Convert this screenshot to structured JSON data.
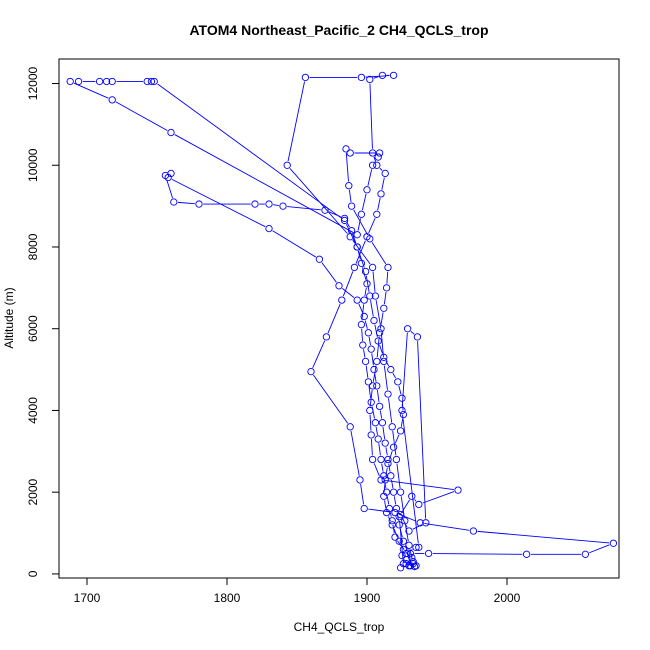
{
  "chart_data": {
    "type": "line",
    "title": "ATOM4 Northeast_Pacific_2 CH4_QCLS_trop",
    "xlabel": "CH4_QCLS_trop",
    "ylabel": "Altitude (m)",
    "xlim": [
      1680,
      2080
    ],
    "ylim": [
      -100,
      12600
    ],
    "xticks": [
      1700,
      1800,
      1900,
      2000
    ],
    "yticks": [
      0,
      2000,
      4000,
      6000,
      8000,
      10000,
      12000
    ],
    "grid": false,
    "color": "#0000ff",
    "marker": "open-circle",
    "series": [
      {
        "values": [
          [
            1924,
            150
          ],
          [
            1930,
            200
          ],
          [
            1934,
            180
          ],
          [
            1928,
            350
          ],
          [
            1932,
            400
          ],
          [
            1926,
            600
          ],
          [
            1920,
            900
          ],
          [
            1918,
            1300
          ],
          [
            1916,
            1600
          ],
          [
            1914,
            2000
          ],
          [
            1912,
            2400
          ],
          [
            1910,
            2800
          ],
          [
            1908,
            3300
          ],
          [
            1906,
            3700
          ],
          [
            1903,
            4200
          ],
          [
            1901,
            4700
          ],
          [
            1899,
            5200
          ],
          [
            1897,
            5600
          ],
          [
            1896,
            6100
          ],
          [
            1898,
            6700
          ],
          [
            1900,
            7100
          ],
          [
            1896,
            7600
          ],
          [
            1893,
            8000
          ],
          [
            1889,
            8400
          ],
          [
            1884,
            8700
          ],
          [
            1870,
            8900
          ],
          [
            1840,
            9000
          ],
          [
            1830,
            9050
          ],
          [
            1820,
            9050
          ],
          [
            1780,
            9050
          ],
          [
            1762,
            9100
          ],
          [
            1756,
            9750
          ],
          [
            1760,
            9800
          ],
          [
            1758,
            9700
          ],
          [
            1830,
            8450
          ],
          [
            1866,
            7700
          ],
          [
            1880,
            7050
          ],
          [
            1893,
            6700
          ],
          [
            1898,
            6300
          ],
          [
            1901,
            5900
          ],
          [
            1903,
            5500
          ],
          [
            1905,
            5000
          ],
          [
            1907,
            4600
          ],
          [
            1909,
            4100
          ],
          [
            1911,
            3700
          ],
          [
            1913,
            3200
          ],
          [
            1915,
            2800
          ],
          [
            1917,
            2400
          ],
          [
            1919,
            2000
          ],
          [
            1921,
            1600
          ],
          [
            1923,
            1200
          ],
          [
            1926,
            800
          ],
          [
            1931,
            500
          ],
          [
            1944,
            500
          ],
          [
            2014,
            480
          ],
          [
            2056,
            480
          ],
          [
            2076,
            750
          ],
          [
            1976,
            1050
          ],
          [
            1938,
            1250
          ],
          [
            1920,
            1500
          ],
          [
            1898,
            1600
          ],
          [
            1895,
            2300
          ],
          [
            1888,
            3600
          ],
          [
            1860,
            4950
          ],
          [
            1871,
            5800
          ],
          [
            1882,
            6700
          ],
          [
            1891,
            7500
          ],
          [
            1900,
            8250
          ],
          [
            1907,
            8800
          ],
          [
            1910,
            9300
          ],
          [
            1913,
            9800
          ],
          [
            1907,
            10000
          ],
          [
            1904,
            10300
          ],
          [
            1902,
            12100
          ],
          [
            1911,
            12200
          ],
          [
            1919,
            12200
          ],
          [
            1896,
            12150
          ],
          [
            1856,
            12150
          ],
          [
            1843,
            10000
          ],
          [
            1888,
            8250
          ],
          [
            1904,
            7500
          ],
          [
            1906,
            6800
          ],
          [
            1910,
            6000
          ],
          [
            1912,
            5200
          ],
          [
            1915,
            4400
          ],
          [
            1918,
            3600
          ],
          [
            1921,
            2800
          ],
          [
            1924,
            2000
          ],
          [
            1927,
            1300
          ],
          [
            1930,
            700
          ],
          [
            1933,
            250
          ],
          [
            1935,
            200
          ],
          [
            1926,
            250
          ],
          [
            1923,
            1400
          ],
          [
            1932,
            1900
          ],
          [
            1937,
            1700
          ],
          [
            1965,
            2050
          ],
          [
            1910,
            2300
          ],
          [
            1904,
            2800
          ],
          [
            1903,
            3400
          ],
          [
            1902,
            4000
          ],
          [
            1904,
            4600
          ],
          [
            1907,
            5200
          ],
          [
            1909,
            5900
          ],
          [
            1912,
            6500
          ],
          [
            1914,
            7000
          ],
          [
            1915,
            7500
          ],
          [
            1902,
            8200
          ],
          [
            1889,
            9000
          ],
          [
            1887,
            9500
          ],
          [
            1885,
            10400
          ],
          [
            1888,
            10300
          ],
          [
            1909,
            10300
          ],
          [
            1908,
            10200
          ],
          [
            1904,
            10000
          ],
          [
            1900,
            9400
          ],
          [
            1896,
            8800
          ],
          [
            1893,
            8300
          ],
          [
            1760,
            10800
          ],
          [
            1718,
            11600
          ],
          [
            1688,
            12050
          ],
          [
            1694,
            12050
          ],
          [
            1709,
            12050
          ],
          [
            1714,
            12050
          ],
          [
            1718,
            12050
          ],
          [
            1743,
            12050
          ],
          [
            1746,
            12050
          ],
          [
            1748,
            12050
          ],
          [
            1884,
            8650
          ],
          [
            1893,
            8000
          ],
          [
            1899,
            7400
          ],
          [
            1902,
            6800
          ],
          [
            1905,
            6200
          ],
          [
            1908,
            5700
          ],
          [
            1912,
            5300
          ],
          [
            1917,
            5000
          ],
          [
            1922,
            4700
          ],
          [
            1925,
            4300
          ],
          [
            1926,
            3900
          ],
          [
            1924,
            3500
          ],
          [
            1919,
            3100
          ],
          [
            1915,
            2700
          ],
          [
            1913,
            2300
          ],
          [
            1912,
            1900
          ],
          [
            1914,
            1500
          ],
          [
            1918,
            1200
          ],
          [
            1923,
            800
          ],
          [
            1928,
            500
          ],
          [
            1933,
            300
          ],
          [
            1931,
            200
          ],
          [
            1928,
            250
          ],
          [
            1925,
            450
          ],
          [
            1935,
            650
          ],
          [
            1937,
            650
          ],
          [
            1925,
            4000
          ],
          [
            1929,
            6000
          ],
          [
            1936,
            5800
          ],
          [
            1942,
            1250
          ],
          [
            1930,
            1050
          ],
          [
            1924,
            1450
          ]
        ]
      }
    ]
  }
}
